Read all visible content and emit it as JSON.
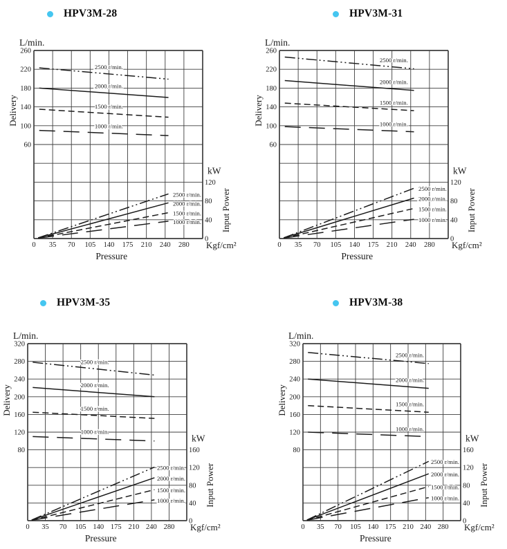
{
  "page": {
    "background": "#ffffff",
    "ink_color": "#1a1a1a",
    "grid_color": "#3d3d3d",
    "bullet_color": "#45c6f0"
  },
  "chart_data": [
    {
      "type": "line",
      "title": "HPV3M-28",
      "xlabel": "Pressure",
      "x_unit": "Kgf/cm²",
      "x_tick_labels": [
        "0",
        "35",
        "70",
        "105",
        "140",
        "175",
        "210",
        "240",
        "280"
      ],
      "left_axis": {
        "unit": "L/min.",
        "label": "Delivery",
        "max": 260,
        "step_per_gridline": 40,
        "ticks": [
          260,
          220,
          180,
          140,
          100,
          60
        ]
      },
      "right_axis": {
        "unit": "kW",
        "label": "Input Power",
        "step_per_gridline": 40,
        "ticks": [
          120,
          80,
          40,
          0
        ]
      },
      "series": [
        {
          "name": "2500 r/min.",
          "style": "dash-dot-dot",
          "delivery": {
            "pressure": [
              10,
              247
            ],
            "lpm": [
              223,
              199
            ]
          },
          "input_power": {
            "pressure": [
              8,
              247
            ],
            "kw": [
              1.5,
              95
            ]
          }
        },
        {
          "name": "2000 r/min.",
          "style": "solid",
          "delivery": {
            "pressure": [
              10,
              247
            ],
            "lpm": [
              180,
              160
            ]
          },
          "input_power": {
            "pressure": [
              8,
              247
            ],
            "kw": [
              1.5,
              76
            ]
          }
        },
        {
          "name": "1500 r/min.",
          "style": "dashed",
          "delivery": {
            "pressure": [
              10,
              247
            ],
            "lpm": [
              135,
              118
            ]
          },
          "input_power": {
            "pressure": [
              8,
              247
            ],
            "kw": [
              1,
              55
            ]
          }
        },
        {
          "name": "1000 r/min.",
          "style": "long-dash",
          "delivery": {
            "pressure": [
              10,
              247
            ],
            "lpm": [
              90,
              79
            ]
          },
          "input_power": {
            "pressure": [
              8,
              247
            ],
            "kw": [
              1,
              37
            ]
          }
        }
      ]
    },
    {
      "type": "line",
      "title": "HPV3M-31",
      "xlabel": "Pressure",
      "x_unit": "Kgf/cm²",
      "x_tick_labels": [
        "0",
        "35",
        "70",
        "105",
        "140",
        "175",
        "210",
        "240",
        "280"
      ],
      "left_axis": {
        "unit": "L/min.",
        "label": "Delivery",
        "max": 260,
        "step_per_gridline": 40,
        "ticks": [
          260,
          220,
          180,
          140,
          100,
          60
        ]
      },
      "right_axis": {
        "unit": "kW",
        "label": "Input Power",
        "step_per_gridline": 40,
        "ticks": [
          120,
          80,
          40,
          0
        ]
      },
      "series": [
        {
          "name": "2500 r/min.",
          "style": "dash-dot-dot",
          "delivery": {
            "pressure": [
              10,
              247
            ],
            "lpm": [
              246,
              221
            ]
          },
          "input_power": {
            "pressure": [
              8,
              247
            ],
            "kw": [
              1.5,
              107
            ]
          }
        },
        {
          "name": "2000 r/min.",
          "style": "solid",
          "delivery": {
            "pressure": [
              10,
              247
            ],
            "lpm": [
              196,
              175
            ]
          },
          "input_power": {
            "pressure": [
              8,
              247
            ],
            "kw": [
              1.5,
              86
            ]
          }
        },
        {
          "name": "1500 r/min.",
          "style": "dashed",
          "delivery": {
            "pressure": [
              10,
              247
            ],
            "lpm": [
              148,
              132
            ]
          },
          "input_power": {
            "pressure": [
              8,
              247
            ],
            "kw": [
              1,
              64
            ]
          }
        },
        {
          "name": "1000 r/min.",
          "style": "long-dash",
          "delivery": {
            "pressure": [
              10,
              247
            ],
            "lpm": [
              98,
              87
            ]
          },
          "input_power": {
            "pressure": [
              8,
              247
            ],
            "kw": [
              1,
              41
            ]
          }
        }
      ]
    },
    {
      "type": "line",
      "title": "HPV3M-35",
      "xlabel": "Pressure",
      "x_unit": "Kgf/cm²",
      "x_tick_labels": [
        "0",
        "35",
        "70",
        "105",
        "140",
        "175",
        "210",
        "240",
        "280"
      ],
      "left_axis": {
        "unit": "L/min.",
        "label": "Delivery",
        "max": 320,
        "step_per_gridline": 40,
        "ticks": [
          320,
          280,
          240,
          200,
          160,
          120,
          80
        ]
      },
      "right_axis": {
        "unit": "kW",
        "label": "Input Power",
        "step_per_gridline": 40,
        "ticks": [
          160,
          120,
          80,
          40,
          0
        ]
      },
      "series": [
        {
          "name": "2500 r/min.",
          "style": "dash-dot-dot",
          "delivery": {
            "pressure": [
              10,
              247
            ],
            "lpm": [
              278,
              249
            ]
          },
          "input_power": {
            "pressure": [
              8,
              247
            ],
            "kw": [
              1.5,
              121
            ]
          }
        },
        {
          "name": "2000 r/min.",
          "style": "solid",
          "delivery": {
            "pressure": [
              10,
              247
            ],
            "lpm": [
              221,
              200
            ]
          },
          "input_power": {
            "pressure": [
              8,
              247
            ],
            "kw": [
              1.5,
              97
            ]
          }
        },
        {
          "name": "1500 r/min.",
          "style": "dashed",
          "delivery": {
            "pressure": [
              10,
              247
            ],
            "lpm": [
              165,
              151
            ]
          },
          "input_power": {
            "pressure": [
              8,
              247
            ],
            "kw": [
              1,
              70
            ]
          }
        },
        {
          "name": "1000 r/min.",
          "style": "long-dash",
          "delivery": {
            "pressure": [
              10,
              247
            ],
            "lpm": [
              110,
              100
            ]
          },
          "input_power": {
            "pressure": [
              8,
              247
            ],
            "kw": [
              1,
              47
            ]
          }
        }
      ]
    },
    {
      "type": "line",
      "title": "HPV3M-38",
      "xlabel": "Pressure",
      "x_unit": "Kgf/cm²",
      "x_tick_labels": [
        "0",
        "35",
        "70",
        "105",
        "140",
        "175",
        "210",
        "240",
        "280"
      ],
      "left_axis": {
        "unit": "L/min.",
        "label": "Delivery",
        "max": 320,
        "step_per_gridline": 40,
        "ticks": [
          320,
          280,
          240,
          200,
          160,
          120,
          80
        ]
      },
      "right_axis": {
        "unit": "kW",
        "label": "Input Power",
        "step_per_gridline": 40,
        "ticks": [
          160,
          120,
          80,
          40,
          0
        ]
      },
      "series": [
        {
          "name": "2500 r/min.",
          "style": "dash-dot-dot",
          "delivery": {
            "pressure": [
              10,
              247
            ],
            "lpm": [
              300,
              275
            ]
          },
          "input_power": {
            "pressure": [
              8,
              247
            ],
            "kw": [
              1.5,
              134
            ]
          }
        },
        {
          "name": "2000 r/min.",
          "style": "solid",
          "delivery": {
            "pressure": [
              10,
              247
            ],
            "lpm": [
              240,
              219
            ]
          },
          "input_power": {
            "pressure": [
              8,
              247
            ],
            "kw": [
              1.5,
              106
            ]
          }
        },
        {
          "name": "1500 r/min.",
          "style": "dashed",
          "delivery": {
            "pressure": [
              10,
              247
            ],
            "lpm": [
              180,
              165
            ]
          },
          "input_power": {
            "pressure": [
              8,
              247
            ],
            "kw": [
              1,
              77
            ]
          }
        },
        {
          "name": "1000 r/min.",
          "style": "long-dash",
          "delivery": {
            "pressure": [
              10,
              247
            ],
            "lpm": [
              120,
              110
            ]
          },
          "input_power": {
            "pressure": [
              8,
              247
            ],
            "kw": [
              1,
              52
            ]
          }
        }
      ]
    }
  ]
}
